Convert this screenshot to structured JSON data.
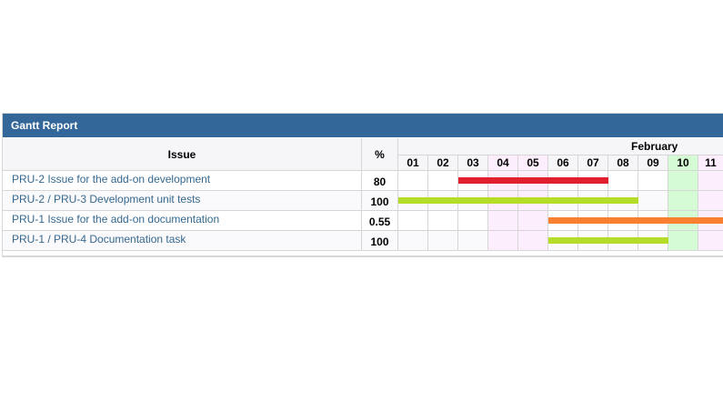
{
  "panel": {
    "title": "Gantt Report"
  },
  "columns": {
    "issue": "Issue",
    "percent": "%"
  },
  "month": "February",
  "days": [
    {
      "label": "01",
      "type": "day"
    },
    {
      "label": "02",
      "type": "day"
    },
    {
      "label": "03",
      "type": "day"
    },
    {
      "label": "04",
      "type": "weekend"
    },
    {
      "label": "05",
      "type": "weekend"
    },
    {
      "label": "06",
      "type": "day"
    },
    {
      "label": "07",
      "type": "day"
    },
    {
      "label": "08",
      "type": "day"
    },
    {
      "label": "09",
      "type": "day"
    },
    {
      "label": "10",
      "type": "today"
    },
    {
      "label": "11",
      "type": "weekend"
    }
  ],
  "rows": [
    {
      "issue": "PRU-2 Issue for the add-on development",
      "percent": "80",
      "bar": {
        "start": "03",
        "end": "07",
        "color": "#e0202e"
      }
    },
    {
      "issue": "PRU-2 / PRU-3 Development unit tests",
      "percent": "100",
      "bar": {
        "start": "01",
        "end": "08",
        "color": "#b4dc28"
      }
    },
    {
      "issue": "PRU-1 Issue for the add-on documentation",
      "percent": "0.55",
      "bar": {
        "start": "06",
        "end": "11",
        "color": "#f88030"
      }
    },
    {
      "issue": "PRU-1 / PRU-4 Documentation task",
      "percent": "100",
      "bar": {
        "start": "06",
        "end": "09",
        "color": "#b4dc28"
      }
    }
  ]
}
